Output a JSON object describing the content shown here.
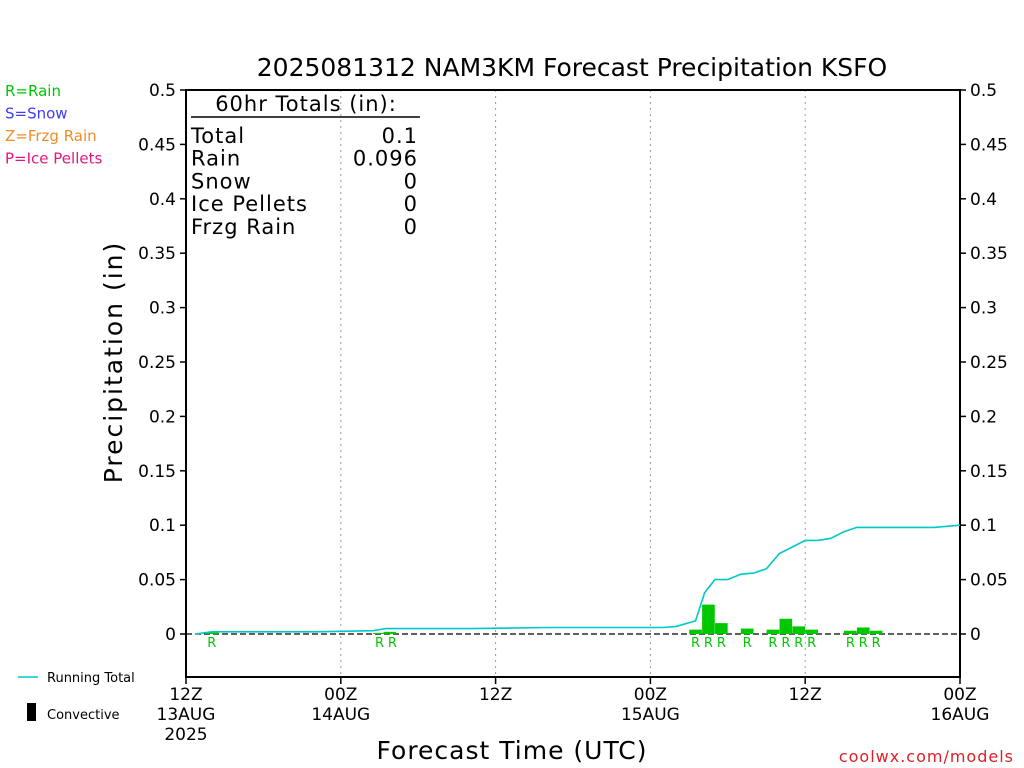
{
  "chart_data": {
    "type": "bar+line",
    "title": "2025081312 NAM3KM Forecast Precipitation KSFO",
    "ylabel": "Precipitation (in)",
    "xlabel": "Forecast Time (UTC)",
    "ylim": [
      -0.04,
      0.5
    ],
    "yticks": [
      "0.5",
      "0.45",
      "0.4",
      "0.35",
      "0.3",
      "0.25",
      "0.2",
      "0.15",
      "0.1",
      "0.05",
      "0"
    ],
    "ytick_values": [
      0.5,
      0.45,
      0.4,
      0.35,
      0.3,
      0.25,
      0.2,
      0.15,
      0.1,
      0.05,
      0
    ],
    "xlim_hours": [
      0,
      60
    ],
    "xticks": [
      {
        "hour": 0,
        "label": "12Z",
        "date": "13AUG",
        "year": "2025"
      },
      {
        "hour": 12,
        "label": "00Z",
        "date": "14AUG",
        "year": ""
      },
      {
        "hour": 24,
        "label": "12Z",
        "date": "",
        "year": ""
      },
      {
        "hour": 36,
        "label": "00Z",
        "date": "15AUG",
        "year": ""
      },
      {
        "hour": 48,
        "label": "12Z",
        "date": "",
        "year": ""
      },
      {
        "hour": 60,
        "label": "00Z",
        "date": "16AUG",
        "year": ""
      }
    ],
    "grid_hours": [
      12,
      24,
      36,
      48
    ],
    "series": [
      {
        "name": "Running Total",
        "type": "line",
        "color": "#00c8c8",
        "hours": [
          0.7,
          2,
          10,
          14.5,
          15.5,
          22,
          28,
          34,
          37,
          38,
          39.5,
          40.2,
          41,
          42,
          43,
          44,
          45,
          46,
          47,
          48,
          49,
          50,
          51,
          52,
          53,
          54,
          55,
          56,
          57,
          58,
          59,
          60
        ],
        "values": [
          0,
          0.002,
          0.002,
          0.003,
          0.005,
          0.005,
          0.006,
          0.006,
          0.006,
          0.007,
          0.012,
          0.038,
          0.05,
          0.05,
          0.055,
          0.056,
          0.06,
          0.074,
          0.08,
          0.086,
          0.086,
          0.088,
          0.094,
          0.098,
          0.098,
          0.098,
          0.098,
          0.098,
          0.098,
          0.098,
          0.099,
          0.1
        ]
      },
      {
        "name": "Convective",
        "type": "bar",
        "color": "#00c800",
        "hours": [
          2,
          15,
          15.8,
          39.5,
          40.5,
          41.5,
          43.5,
          45.5,
          46.5,
          47.5,
          48.5,
          49.5,
          51.5,
          52.5,
          53.5
        ],
        "values": [
          0.0015,
          0.001,
          0.002,
          0.004,
          0.027,
          0.01,
          0.005,
          0.004,
          0.014,
          0.007,
          0.004,
          0.0,
          0.003,
          0.006,
          0.003
        ]
      }
    ],
    "ptype_markers": [
      {
        "hour": 2,
        "label": "R"
      },
      {
        "hour": 15,
        "label": "R"
      },
      {
        "hour": 16,
        "label": "R"
      },
      {
        "hour": 39.5,
        "label": "R"
      },
      {
        "hour": 40.5,
        "label": "R"
      },
      {
        "hour": 41.5,
        "label": "R"
      },
      {
        "hour": 43.5,
        "label": "R"
      },
      {
        "hour": 45.5,
        "label": "R"
      },
      {
        "hour": 46.5,
        "label": "R"
      },
      {
        "hour": 47.5,
        "label": "R"
      },
      {
        "hour": 48.5,
        "label": "R"
      },
      {
        "hour": 51.5,
        "label": "R"
      },
      {
        "hour": 52.5,
        "label": "R"
      },
      {
        "hour": 53.5,
        "label": "R"
      }
    ],
    "totals_box": {
      "header": "60hr Totals (in):",
      "rows": [
        {
          "label": "Total",
          "value": "0.1"
        },
        {
          "label": "Rain",
          "value": "0.096"
        },
        {
          "label": "Snow",
          "value": "0"
        },
        {
          "label": "Ice Pellets",
          "value": "0"
        },
        {
          "label": "Frzg Rain",
          "value": "0"
        }
      ]
    },
    "ptype_legend": [
      {
        "text": "R=Rain",
        "color": "#00c800"
      },
      {
        "text": "S=Snow",
        "color": "#3c3cff"
      },
      {
        "text": "Z=Frzg Rain",
        "color": "#f08c28"
      },
      {
        "text": "P=Ice Pellets",
        "color": "#e6147d"
      }
    ],
    "series_legend": [
      {
        "text": "Running Total",
        "color": "#00c8c8",
        "kind": "line"
      },
      {
        "text": "Convective",
        "color": "#000000",
        "kind": "bar"
      }
    ],
    "credit": "coolwx.com/models",
    "credit_color": "#e01e28"
  }
}
